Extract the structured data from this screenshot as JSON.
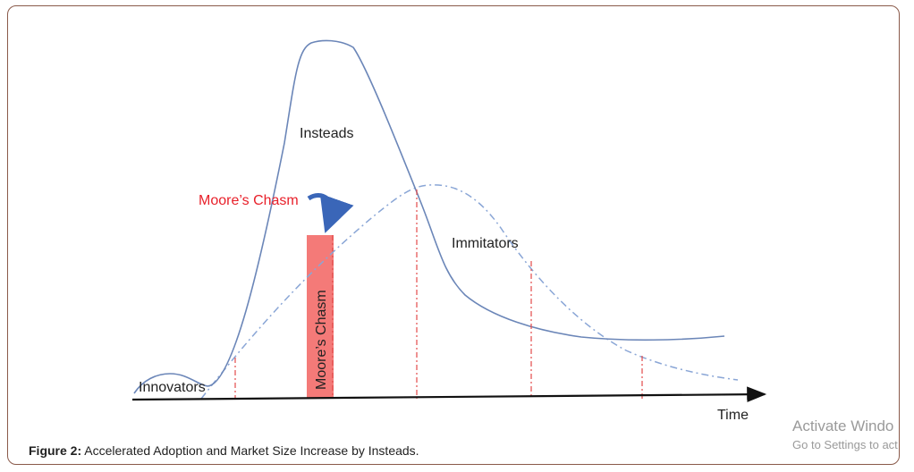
{
  "diagram": {
    "labels": {
      "insteads": "Insteads",
      "moores_chasm_arrow": "Moore’s Chasm",
      "moores_chasm_bar": "Moore’s Chasm",
      "immitators": "Immitators",
      "innovators": "Innovators",
      "time": "Time"
    },
    "colors": {
      "insteads_curve": "#6b86b8",
      "immitators_curve": "#8aa6d6",
      "chasm_bar": "#f47a78",
      "chasm_text": "#e8202a",
      "arrow": "#3a66b8",
      "dash_lines": "#e24a4a",
      "axis": "#111111"
    }
  },
  "caption": {
    "prefix": "Figure 2:",
    "text": " Accelerated Adoption and Market Size Increase by Insteads."
  },
  "watermark": {
    "line1": "Activate Windo",
    "line2": "Go to Settings to act"
  }
}
